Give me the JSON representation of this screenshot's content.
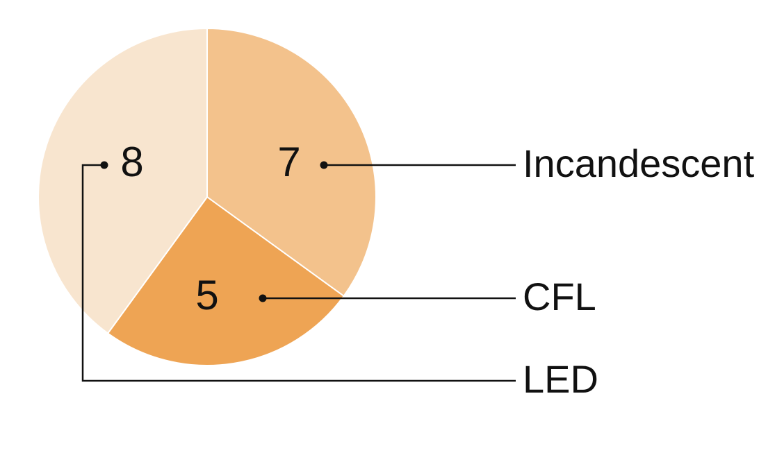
{
  "chart_data": {
    "type": "pie",
    "slices": [
      {
        "label": "Incandescent",
        "value": 7,
        "color": "#f3c28c"
      },
      {
        "label": "CFL",
        "value": 5,
        "color": "#eea454"
      },
      {
        "label": "LED",
        "value": 8,
        "color": "#f8e5cf"
      }
    ],
    "start_angle": "12 o'clock",
    "direction": "clockwise",
    "legend": "right"
  }
}
